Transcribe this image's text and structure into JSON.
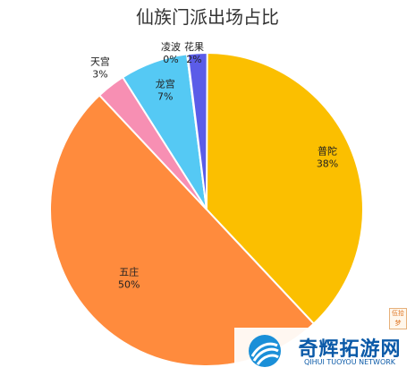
{
  "chart_data": {
    "type": "pie",
    "title": "仙族门派出场占比",
    "slices": [
      {
        "name": "普陀",
        "value": 38,
        "label": "38%",
        "color": "#FBBF00"
      },
      {
        "name": "五庄",
        "value": 50,
        "label": "50%",
        "color": "#FF8B3D"
      },
      {
        "name": "天宫",
        "value": 3,
        "label": "3%",
        "color": "#F78FB3"
      },
      {
        "name": "龙宫",
        "value": 7,
        "label": "7%",
        "color": "#55C9F4"
      },
      {
        "name": "凌波",
        "value": 0,
        "label": "0%",
        "color": "#6FD28E"
      },
      {
        "name": "花果",
        "value": 2,
        "label": "2%",
        "color": "#5B5CE8"
      }
    ],
    "legend": "none"
  },
  "watermark": {
    "name": "奇辉拓游网",
    "sub": "QIHUI TUOYOU NETWORK",
    "tag": "伍拾梦"
  }
}
